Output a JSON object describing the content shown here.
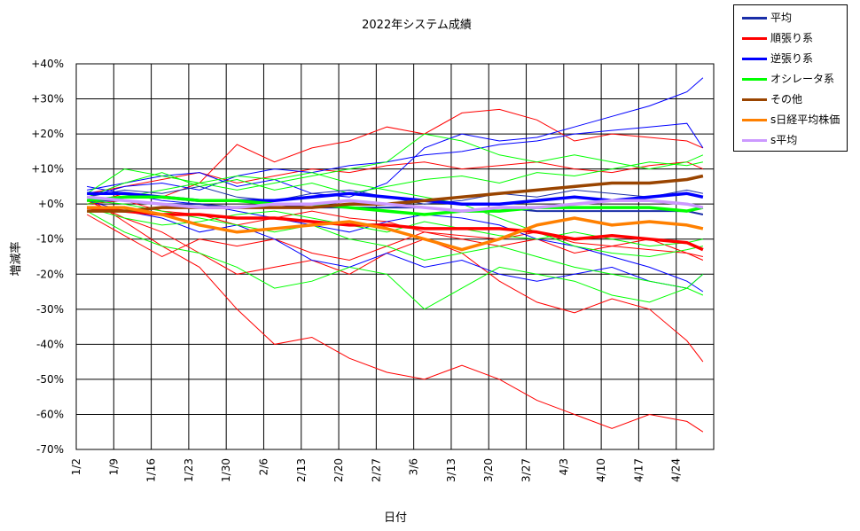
{
  "chart_data": {
    "type": "line",
    "title": "2022年システム成績",
    "xlabel": "日付",
    "ylabel": "増減率",
    "x_tick_labels": [
      "1/2",
      "1/9",
      "1/16",
      "1/23",
      "1/30",
      "2/6",
      "2/13",
      "2/20",
      "2/27",
      "3/6",
      "3/13",
      "3/20",
      "3/27",
      "4/3",
      "4/10",
      "4/17",
      "4/24"
    ],
    "y_tick_labels": [
      "+40%",
      "+30%",
      "+20%",
      "+10%",
      "+0%",
      "-10%",
      "-20%",
      "-30%",
      "-40%",
      "-50%",
      "-60%",
      "-70%"
    ],
    "ylim": [
      -70,
      40
    ],
    "x_range": [
      "2022-01-02",
      "2022-05-01"
    ],
    "grid": true,
    "legend_position": "top-right-outside",
    "dates": [
      "1/4",
      "1/11",
      "1/18",
      "1/25",
      "2/1",
      "2/8",
      "2/15",
      "2/22",
      "3/1",
      "3/8",
      "3/15",
      "3/22",
      "3/29",
      "4/5",
      "4/12",
      "4/19",
      "4/26",
      "4/29"
    ],
    "series": [
      {
        "name": "平均",
        "color": "#1a2ea8",
        "values": [
          1,
          1,
          0,
          0,
          -1,
          0,
          -1,
          -1,
          -1,
          -1,
          -2,
          -1,
          -2,
          -2,
          -2,
          -2,
          -2,
          -3
        ]
      },
      {
        "name": "順張り系",
        "color": "#ff0000",
        "values": [
          -1,
          -2,
          -3,
          -3,
          -4,
          -4,
          -5,
          -6,
          -6,
          -7,
          -7,
          -7,
          -8,
          -10,
          -9,
          -10,
          -11,
          -13
        ]
      },
      {
        "name": "逆張り系",
        "color": "#0000ff",
        "values": [
          3,
          3,
          2,
          1,
          1,
          1,
          2,
          3,
          2,
          1,
          0,
          0,
          1,
          2,
          1,
          2,
          3,
          2
        ]
      },
      {
        "name": "オシレータ系",
        "color": "#00ff00",
        "values": [
          1,
          2,
          2,
          1,
          1,
          0,
          0,
          -1,
          -2,
          -3,
          -2,
          -2,
          -1,
          -1,
          -1,
          -1,
          -2,
          -1
        ]
      },
      {
        "name": "その他",
        "color": "#994400",
        "values": [
          -2,
          -2,
          -1,
          -1,
          -1,
          -1,
          -1,
          0,
          0,
          1,
          2,
          3,
          4,
          5,
          6,
          6,
          7,
          8
        ]
      },
      {
        "name": "s日経平均株価",
        "color": "#ff8000",
        "values": [
          -1,
          -1,
          -3,
          -6,
          -8,
          -7,
          -6,
          -5,
          -7,
          -10,
          -13,
          -10,
          -6,
          -4,
          -6,
          -5,
          -6,
          -7
        ]
      },
      {
        "name": "s平均",
        "color": "#cc99ff",
        "values": [
          2,
          1,
          0,
          -1,
          -1,
          0,
          0,
          1,
          0,
          -1,
          -2,
          -1,
          -1,
          0,
          1,
          1,
          0,
          -1
        ]
      }
    ],
    "thin_series": [
      {
        "group": "順張り系",
        "color": "#ff0000",
        "values": [
          2,
          -5,
          -12,
          -18,
          -30,
          -40,
          -38,
          -44,
          -48,
          -50,
          -46,
          -50,
          -56,
          -60,
          -64,
          -60,
          -62,
          -65
        ]
      },
      {
        "group": "順張り系",
        "color": "#ff0000",
        "values": [
          0,
          3,
          2,
          6,
          17,
          12,
          16,
          18,
          22,
          20,
          26,
          27,
          24,
          18,
          20,
          19,
          18,
          16
        ]
      },
      {
        "group": "順張り系",
        "color": "#ff0000",
        "values": [
          1,
          -4,
          -8,
          -14,
          -20,
          -18,
          -16,
          -20,
          -14,
          -10,
          -14,
          -22,
          -28,
          -31,
          -27,
          -30,
          -39,
          -45
        ]
      },
      {
        "group": "順張り系",
        "color": "#ff0000",
        "values": [
          -3,
          -9,
          -15,
          -10,
          -12,
          -10,
          -14,
          -16,
          -12,
          -8,
          -10,
          -12,
          -10,
          -14,
          -12,
          -10,
          -14,
          -16
        ]
      },
      {
        "group": "順張り系",
        "color": "#ff0000",
        "values": [
          0,
          1,
          -2,
          -3,
          -6,
          -4,
          -2,
          -4,
          -5,
          -8,
          -9,
          -10,
          -8,
          -11,
          -12,
          -13,
          -14,
          -15
        ]
      },
      {
        "group": "順張り系",
        "color": "#ff0000",
        "values": [
          3,
          5,
          7,
          9,
          6,
          8,
          10,
          9,
          11,
          12,
          10,
          11,
          12,
          10,
          9,
          11,
          12,
          10
        ]
      },
      {
        "group": "逆張り系",
        "color": "#0000ff",
        "values": [
          4,
          6,
          8,
          9,
          5,
          7,
          3,
          2,
          6,
          16,
          20,
          18,
          19,
          22,
          25,
          28,
          32,
          36
        ]
      },
      {
        "group": "逆張り系",
        "color": "#0000ff",
        "values": [
          1,
          -2,
          -4,
          -8,
          -6,
          -10,
          -16,
          -18,
          -14,
          -18,
          -16,
          -20,
          -22,
          -20,
          -18,
          -22,
          -24,
          -20
        ]
      },
      {
        "group": "逆張り系",
        "color": "#0000ff",
        "values": [
          2,
          5,
          6,
          4,
          8,
          10,
          9,
          11,
          12,
          14,
          15,
          17,
          18,
          20,
          21,
          22,
          23,
          16
        ]
      },
      {
        "group": "逆張り系",
        "color": "#0000ff",
        "values": [
          5,
          3,
          1,
          0,
          -2,
          -4,
          -6,
          -8,
          -5,
          -3,
          -4,
          -6,
          -10,
          -12,
          -15,
          -18,
          -22,
          -25
        ]
      },
      {
        "group": "オシレータ系",
        "color": "#00ff00",
        "values": [
          -2,
          -8,
          -12,
          -14,
          -18,
          -24,
          -22,
          -18,
          -20,
          -30,
          -24,
          -18,
          -20,
          -22,
          -26,
          -28,
          -24,
          -26
        ]
      },
      {
        "group": "オシレータ系",
        "color": "#00ff00",
        "values": [
          3,
          10,
          8,
          6,
          4,
          6,
          8,
          10,
          12,
          20,
          18,
          14,
          12,
          14,
          12,
          10,
          12,
          14
        ]
      },
      {
        "group": "オシレータ系",
        "color": "#00ff00",
        "values": [
          0,
          2,
          4,
          6,
          8,
          7,
          9,
          6,
          4,
          2,
          0,
          -4,
          -8,
          -12,
          -14,
          -15,
          -13,
          -12
        ]
      },
      {
        "group": "オシレータ系",
        "color": "#00ff00",
        "values": [
          -1,
          -4,
          -6,
          -5,
          -3,
          -2,
          -4,
          -6,
          -8,
          -5,
          -7,
          -9,
          -10,
          -8,
          -10,
          -12,
          -11,
          -10
        ]
      },
      {
        "group": "オシレータ系",
        "color": "#00ff00",
        "values": [
          2,
          6,
          9,
          5,
          7,
          4,
          6,
          3,
          5,
          7,
          8,
          6,
          9,
          8,
          10,
          12,
          11,
          12
        ]
      },
      {
        "group": "オシレータ系",
        "color": "#00ff00",
        "values": [
          1,
          0,
          -2,
          -4,
          -6,
          -8,
          -6,
          -10,
          -12,
          -16,
          -14,
          -12,
          -15,
          -18,
          -20,
          -22,
          -24,
          -20
        ]
      },
      {
        "group": "平均",
        "color": "#1a2ea8",
        "values": [
          2,
          4,
          3,
          5,
          2,
          1,
          3,
          4,
          2,
          0,
          1,
          3,
          2,
          4,
          3,
          2,
          4,
          3
        ]
      }
    ]
  }
}
